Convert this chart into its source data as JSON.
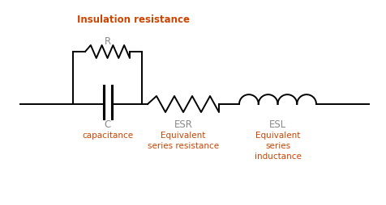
{
  "background_color": "#ffffff",
  "insulation_label": "Insulation resistance",
  "insulation_color": "#cc4400",
  "R_label": "R",
  "R_color": "#888888",
  "C_label": "C",
  "C_color": "#888888",
  "capacitance_label": "capacitance",
  "capacitance_color": "#cc4400",
  "ESR_label": "ESR",
  "ESR_color": "#888888",
  "ESR_desc_color": "#cc4400",
  "ESR_desc": "Equivalent\nseries resistance",
  "ESL_label": "ESL",
  "ESL_color": "#888888",
  "ESL_desc_color": "#cc4400",
  "ESL_desc": "Equivalent\nseries\ninductance",
  "wire_color": "#000000",
  "component_color": "#000000",
  "lw": 1.4
}
